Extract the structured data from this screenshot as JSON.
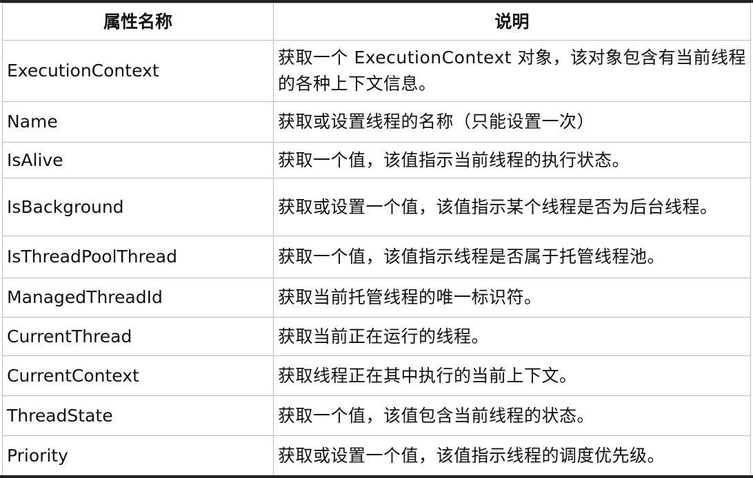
{
  "table": {
    "headers": [
      "属性名称",
      "说明"
    ],
    "rows": [
      {
        "name": "ExecutionContext",
        "desc": "获取一个 ExecutionContext 对象，该对象包含有当前线程的各种上下文信息。"
      },
      {
        "name": "Name",
        "desc": "获取或设置线程的名称（只能设置一次）"
      },
      {
        "name": "IsAlive",
        "desc": "获取一个值，该值指示当前线程的执行状态。"
      },
      {
        "name": "IsBackground",
        "desc": "获取或设置一个值，该值指示某个线程是否为后台线程。"
      },
      {
        "name": "IsThreadPoolThread",
        "desc": "获取一个值，该值指示线程是否属于托管线程池。"
      },
      {
        "name": "ManagedThreadId",
        "desc": "获取当前托管线程的唯一标识符。"
      },
      {
        "name": "CurrentThread",
        "desc": "获取当前正在运行的线程。"
      },
      {
        "name": "CurrentContext",
        "desc": "获取线程正在其中执行的当前上下文。"
      },
      {
        "name": "ThreadState",
        "desc": "获取一个值，该值包含当前线程的状态。"
      },
      {
        "name": "Priority",
        "desc": "获取或设置一个值，该值指示线程的调度优先级。"
      }
    ]
  }
}
